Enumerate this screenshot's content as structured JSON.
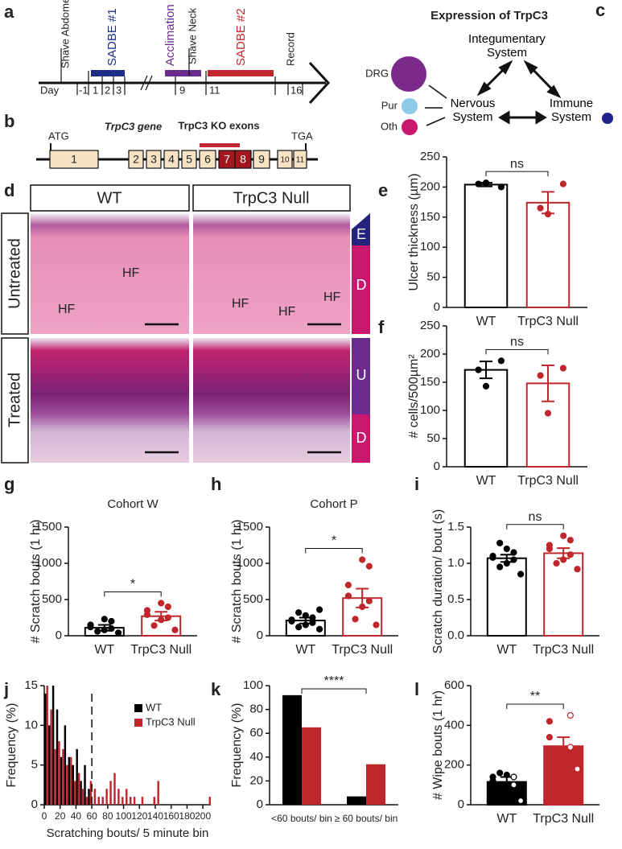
{
  "panel_labels": [
    "a",
    "b",
    "c",
    "d",
    "e",
    "f",
    "g",
    "h",
    "i",
    "j",
    "k",
    "l"
  ],
  "timeline": {
    "events": [
      "Shave Abdomen",
      "SADBE #1",
      "Acclimation",
      "Shave Neck",
      "SADBE #2",
      "Record"
    ],
    "day_label": "Day",
    "days": [
      "-1",
      "1",
      "2",
      "3",
      "9",
      "11",
      "16"
    ]
  },
  "gene": {
    "title": "TrpC3 gene",
    "ko_label": "TrpC3 KO exons",
    "start": "ATG",
    "stop": "TGA",
    "exons": [
      "1",
      "2",
      "3",
      "4",
      "5",
      "6",
      "7",
      "8",
      "9",
      "10",
      "11"
    ]
  },
  "expression": {
    "title": "Expression of TrpC3",
    "nodes": [
      "Integumentary System",
      "Nervous System",
      "Immune System"
    ],
    "subsets": [
      "DRG",
      "Pur",
      "Oth"
    ]
  },
  "histology": {
    "columns": [
      "WT",
      "TrpC3 Null"
    ],
    "rows": [
      "Untreated",
      "Treated"
    ],
    "hf_labels": [
      "HF",
      "HF",
      "HF",
      "HF",
      "HF"
    ],
    "layers_untreated": [
      "E",
      "D"
    ],
    "layers_treated": [
      "U",
      "D"
    ]
  },
  "chart_data": [
    {
      "type": "bar",
      "ylabel": "Ulcer thickness (µm)",
      "categories": [
        "WT",
        "TrpC3 Null"
      ],
      "values": [
        204,
        174
      ],
      "errors": [
        3,
        18
      ],
      "points": [
        [
          200,
          205,
          207
        ],
        [
          205,
          165,
          155
        ]
      ],
      "colors": [
        "#000000",
        "#c0272d"
      ],
      "fills": [
        "#ffffff",
        "#ffffff"
      ],
      "annotation": "ns",
      "ylim": [
        0,
        250
      ],
      "yticks": [
        0,
        50,
        100,
        150,
        200,
        250
      ]
    },
    {
      "type": "bar",
      "ylabel": "# cells/500µm²",
      "categories": [
        "WT",
        "TrpC3 Null"
      ],
      "values": [
        172,
        148
      ],
      "errors": [
        15,
        32
      ],
      "points": [
        [
          188,
          172,
          143
        ],
        [
          175,
          162,
          95
        ]
      ],
      "colors": [
        "#000000",
        "#c0272d"
      ],
      "fills": [
        "#ffffff",
        "#ffffff"
      ],
      "annotation": "ns",
      "ylim": [
        0,
        250
      ],
      "yticks": [
        0,
        50,
        100,
        150,
        200,
        250
      ]
    },
    {
      "type": "bar",
      "title": "Cohort W",
      "ylabel": "# Scratch bouts (1 hr)",
      "categories": [
        "WT",
        "TrpC3 Null"
      ],
      "values": [
        110,
        270
      ],
      "errors": [
        40,
        60
      ],
      "points": [
        [
          40,
          60,
          80,
          100,
          120,
          150,
          200,
          230
        ],
        [
          80,
          140,
          220,
          250,
          290,
          350,
          400,
          450
        ]
      ],
      "colors": [
        "#000000",
        "#c0272d"
      ],
      "fills": [
        "#ffffff",
        "#ffffff"
      ],
      "annotation": "*",
      "ylim": [
        0,
        1500
      ],
      "yticks": [
        0,
        500,
        1000,
        1500
      ]
    },
    {
      "type": "bar",
      "title": "Cohort P",
      "ylabel": "# Scratch bouts (1 hr)",
      "categories": [
        "WT",
        "TrpC3 Null"
      ],
      "values": [
        210,
        520
      ],
      "errors": [
        40,
        130
      ],
      "points": [
        [
          90,
          120,
          150,
          180,
          200,
          220,
          250,
          280,
          320,
          360
        ],
        [
          150,
          230,
          400,
          480,
          550,
          700,
          960,
          1050
        ]
      ],
      "colors": [
        "#000000",
        "#c0272d"
      ],
      "fills": [
        "#ffffff",
        "#ffffff"
      ],
      "annotation": "*",
      "ylim": [
        0,
        1500
      ],
      "yticks": [
        0,
        500,
        1000,
        1500
      ]
    },
    {
      "type": "bar",
      "ylabel": "Scratch duration/ bout (s)",
      "categories": [
        "WT",
        "TrpC3 Null"
      ],
      "values": [
        1.07,
        1.14
      ],
      "errors": [
        0.05,
        0.07
      ],
      "points": [
        [
          0.85,
          0.95,
          1.0,
          1.05,
          1.08,
          1.1,
          1.15,
          1.2,
          1.28
        ],
        [
          0.92,
          1.0,
          1.05,
          1.12,
          1.2,
          1.25,
          1.32,
          1.38
        ]
      ],
      "colors": [
        "#000000",
        "#c0272d"
      ],
      "fills": [
        "#ffffff",
        "#ffffff"
      ],
      "annotation": "ns",
      "ylim": [
        0,
        1.5
      ],
      "yticks": [
        {
          "value": 0,
          "label": "0.0"
        },
        0.5,
        {
          "value": 1,
          "label": "1.0"
        },
        1.5
      ]
    },
    {
      "type": "histogram",
      "ylabel": "Frequency (%)",
      "xlabel": "Scratching bouts/ 5 minute bin",
      "bins": [
        0,
        5,
        10,
        15,
        20,
        25,
        30,
        35,
        40,
        45,
        50,
        55,
        60,
        65,
        70,
        75,
        80,
        85,
        90,
        95,
        100,
        105,
        110,
        115,
        120,
        125,
        130,
        135,
        140,
        145,
        150,
        155,
        160,
        165,
        170,
        175,
        180,
        185,
        190,
        195,
        200,
        205,
        210
      ],
      "series": [
        {
          "name": "WT",
          "color": "#000000",
          "values": [
            14,
            10,
            15,
            12,
            6,
            10,
            6,
            5,
            7,
            3,
            5,
            2,
            0,
            0,
            0,
            0,
            0,
            0,
            0,
            0,
            0,
            0,
            0,
            0,
            0,
            0,
            0,
            0,
            0,
            0,
            0,
            0,
            0,
            0,
            0,
            0,
            0,
            0,
            0,
            0,
            0,
            0
          ]
        },
        {
          "name": "TrpC3 Null",
          "color": "#c0272d",
          "values": [
            15,
            12,
            7,
            8,
            7,
            5,
            6,
            3,
            4,
            2,
            1,
            3,
            2,
            1,
            1,
            2,
            3,
            4,
            2,
            1,
            2,
            1,
            1,
            0,
            1,
            0,
            0,
            1,
            3,
            0,
            0,
            0,
            0,
            0,
            0,
            0,
            0,
            0,
            0,
            0,
            0,
            1
          ]
        }
      ],
      "threshold": 60,
      "xlim": [
        0,
        210
      ],
      "xticks": [
        0,
        20,
        40,
        60,
        80,
        100,
        120,
        140,
        160,
        180,
        200
      ],
      "ylim": [
        0,
        15
      ],
      "yticks": [
        0,
        5,
        10,
        15
      ],
      "legend": "top-right"
    },
    {
      "type": "grouped_bar",
      "ylabel": "Frequency (%)",
      "categories": [
        "<60 bouts/ bin",
        "≥ 60 bouts/ bin"
      ],
      "series": [
        {
          "name": "WT",
          "color": "#000000",
          "values": [
            92,
            7
          ]
        },
        {
          "name": "TrpC3 Null",
          "color": "#c0272d",
          "values": [
            65,
            34
          ]
        }
      ],
      "annotation": "****",
      "ylim": [
        0,
        100
      ],
      "yticks": [
        0,
        20,
        40,
        60,
        80,
        100
      ]
    },
    {
      "type": "bar",
      "ylabel": "# Wipe bouts (1 hr)",
      "categories": [
        "WT",
        "TrpC3 Null"
      ],
      "values": [
        115,
        295
      ],
      "errors": [
        25,
        45
      ],
      "points": [
        [
          20,
          60,
          80,
          100,
          120,
          140,
          140,
          150,
          160
        ],
        [
          180,
          220,
          260,
          290,
          340,
          420,
          450
        ]
      ],
      "colors": [
        "#000000",
        "#c0272d"
      ],
      "fills": [
        "#000000",
        "#c0272d"
      ],
      "annotation": "**",
      "ylim": [
        0,
        600
      ],
      "yticks": [
        0,
        200,
        400,
        600
      ]
    }
  ]
}
